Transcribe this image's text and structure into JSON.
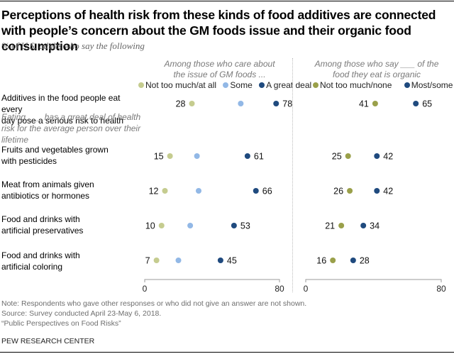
{
  "title": "Perceptions of health risk from these kinds of food additives are connected with people’s concern about the GM foods issue and their organic food consumption",
  "subtitle": "% of U.S. adults who say the following",
  "left_panel": {
    "heading": "Among those who care about the issue of GM foods ...",
    "legend": [
      {
        "label": "Not too much/at all",
        "color": "#c5cc8f"
      },
      {
        "label": "Some",
        "color": "#92b8e6"
      },
      {
        "label": "A great deal",
        "color": "#1f4a7e"
      }
    ]
  },
  "right_panel": {
    "heading": "Among those who say ___ of the food they eat is organic",
    "legend": [
      {
        "label": "Not too much/none",
        "color": "#9aa04a"
      },
      {
        "label": "Most/some",
        "color": "#1f4a7e"
      }
    ]
  },
  "section_label": "Eating ___ has a great deal of health risk for the average person over their lifetime",
  "notes": [
    "Note: Respondents who gave other responses or who did not give an answer are not shown.",
    "Source: Survey conducted April 23-May 6, 2018.",
    "“Public Perspectives on Food Risks”"
  ],
  "brand": "PEW RESEARCH CENTER",
  "chart_data": [
    {
      "type": "scatter",
      "subtype": "dot-plot",
      "title": "Among those who care about the issue of GM foods ...",
      "categories": [
        "Additives in the food people eat every day pose a serious risk to health",
        "Fruits and vegetables grown with pesticides",
        "Meat from animals given antibiotics or hormones",
        "Food and drinks with artificial preservatives",
        "Food and drinks with artificial coloring"
      ],
      "series": [
        {
          "name": "Not too much/at all",
          "color": "#c5cc8f",
          "values": [
            28,
            15,
            12,
            10,
            7
          ],
          "labeled": true
        },
        {
          "name": "Some",
          "color": "#92b8e6",
          "values": [
            57,
            31,
            32,
            27,
            20
          ],
          "labeled": false,
          "note": "values estimated from position; not labeled"
        },
        {
          "name": "A great deal",
          "color": "#1f4a7e",
          "values": [
            78,
            61,
            66,
            53,
            45
          ],
          "labeled": true
        }
      ],
      "xlim": [
        0,
        80
      ],
      "xticks": [
        "0",
        "80"
      ],
      "legend": "top"
    },
    {
      "type": "scatter",
      "subtype": "dot-plot",
      "title": "Among those who say ___ of the food they eat is organic",
      "categories": [
        "Additives in the food people eat every day pose a serious risk to health",
        "Fruits and vegetables grown with pesticides",
        "Meat from animals given antibiotics or hormones",
        "Food and drinks with artificial preservatives",
        "Food and drinks with artificial coloring"
      ],
      "series": [
        {
          "name": "Not too much/none",
          "color": "#9aa04a",
          "values": [
            41,
            25,
            26,
            21,
            16
          ],
          "labeled": true
        },
        {
          "name": "Most/some",
          "color": "#1f4a7e",
          "values": [
            65,
            42,
            42,
            34,
            28
          ],
          "labeled": true
        }
      ],
      "xlim": [
        0,
        80
      ],
      "xticks": [
        "0",
        "80"
      ],
      "legend": "top"
    }
  ],
  "row_labels": [
    [
      "Additives in the food people eat every",
      "day pose a serious risk to health"
    ],
    [
      "Fruits and vegetables grown",
      "with pesticides"
    ],
    [
      "Meat from animals given",
      "antibiotics or hormones"
    ],
    [
      "Food and drinks with",
      "artificial preservatives"
    ],
    [
      "Food and drinks with",
      "artificial coloring"
    ]
  ]
}
